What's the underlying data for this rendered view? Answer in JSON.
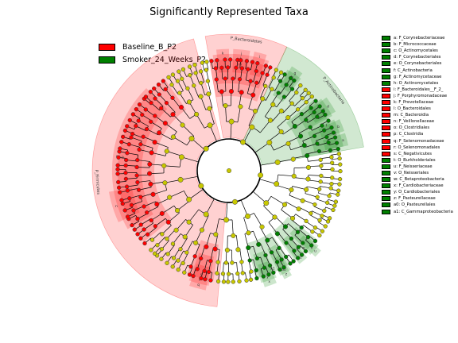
{
  "title": "Significantly Represented Taxa",
  "colors": {
    "baseline": "#ff0000",
    "smoker": "#008000",
    "neutral_node": "#c8c800",
    "baseline_shade": "#ff9e9e",
    "smoker_shade": "#9fd29f"
  },
  "groups": [
    {
      "name": "Baseline_B_P2",
      "color": "#ff0000"
    },
    {
      "name": "Smoker_24_Weeks_P2",
      "color": "#008000"
    }
  ],
  "clades": [
    {
      "label": "a: F_Corynebacteriaceae",
      "group": "smoker"
    },
    {
      "label": "b: F_Micrococcaceae",
      "group": "smoker"
    },
    {
      "label": "c: O_Actinomycetales",
      "group": "smoker"
    },
    {
      "label": "d: F_Corynebacteriales",
      "group": "smoker"
    },
    {
      "label": "e: O_Corynebacteriales",
      "group": "smoker"
    },
    {
      "label": "f: C_Actinobacteria",
      "group": "smoker"
    },
    {
      "label": "g: F_Actinomycetaceae",
      "group": "smoker"
    },
    {
      "label": "h: O_Actinomycetales",
      "group": "smoker"
    },
    {
      "label": "i: F_Bacteroidales__F_2_",
      "group": "baseline"
    },
    {
      "label": "j: F_Porphyromonadaceae",
      "group": "baseline"
    },
    {
      "label": "k: F_Prevotellaceae",
      "group": "baseline"
    },
    {
      "label": "l: O_Bacteroidales",
      "group": "baseline"
    },
    {
      "label": "m: C_Bacteroidia",
      "group": "baseline"
    },
    {
      "label": "n: F_Veillonellaceae",
      "group": "baseline"
    },
    {
      "label": "o: O_Clostridiales",
      "group": "baseline"
    },
    {
      "label": "p: C_Clostridia",
      "group": "baseline"
    },
    {
      "label": "q: F_Selenomonadaceae",
      "group": "baseline"
    },
    {
      "label": "r: O_Selenomonadales",
      "group": "baseline"
    },
    {
      "label": "s: C_Negativicutes",
      "group": "baseline"
    },
    {
      "label": "t: O_Burkholderiales",
      "group": "smoker"
    },
    {
      "label": "u: F_Neisseriaceae",
      "group": "smoker"
    },
    {
      "label": "v: O_Neisseriales",
      "group": "smoker"
    },
    {
      "label": "w: C_Betaproteobacteria",
      "group": "smoker"
    },
    {
      "label": "x: F_Cardiobacteriaceae",
      "group": "smoker"
    },
    {
      "label": "y: O_Cardiobacteriales",
      "group": "smoker"
    },
    {
      "label": "z: F_Pasteurellaceae",
      "group": "smoker"
    },
    {
      "label": "a0: O_Pasteurellales",
      "group": "smoker"
    },
    {
      "label": "a1: C_Gammaproteobacteria",
      "group": "smoker"
    }
  ],
  "phyla": [
    {
      "label": "P_Bacteroidetes",
      "group": "baseline",
      "start": -100,
      "end": -65
    },
    {
      "label": "P_Actinobacteria",
      "group": "smoker",
      "start": -65,
      "end": -10
    },
    {
      "label": "P_Firmicutes",
      "group": "baseline",
      "start": 95,
      "end": 255
    }
  ],
  "sectors": [
    {
      "label": "m",
      "group": "baseline",
      "ring": 4,
      "start": -100,
      "end": -68
    },
    {
      "label": "l",
      "group": "baseline",
      "ring": 5,
      "start": -98,
      "end": -70
    },
    {
      "label": "k",
      "group": "baseline",
      "ring": 6,
      "start": -96,
      "end": -90
    },
    {
      "label": "j",
      "group": "baseline",
      "ring": 6,
      "start": -88,
      "end": -80
    },
    {
      "label": "i",
      "group": "baseline",
      "ring": 6,
      "start": -78,
      "end": -72
    },
    {
      "label": "f",
      "group": "smoker",
      "ring": 4,
      "start": -40,
      "end": -10
    },
    {
      "label": "e",
      "group": "smoker",
      "ring": 5,
      "start": -38,
      "end": -28
    },
    {
      "label": "c",
      "group": "smoker",
      "ring": 5,
      "start": -26,
      "end": -12
    },
    {
      "label": "d",
      "group": "smoker",
      "ring": 6,
      "start": -37,
      "end": -29
    },
    {
      "label": "b",
      "group": "smoker",
      "ring": 6,
      "start": -25,
      "end": -19
    },
    {
      "label": "a",
      "group": "smoker",
      "ring": 6,
      "start": -18,
      "end": -12
    },
    {
      "label": "h",
      "group": "smoker",
      "ring": 5,
      "start": -60,
      "end": -52
    },
    {
      "label": "g",
      "group": "smoker",
      "ring": 6,
      "start": -59,
      "end": -53
    },
    {
      "label": "p",
      "group": "baseline",
      "ring": 4,
      "start": 140,
      "end": 235
    },
    {
      "label": "o",
      "group": "baseline",
      "ring": 5,
      "start": 150,
      "end": 225
    },
    {
      "label": "n",
      "group": "baseline",
      "ring": 6,
      "start": 155,
      "end": 170
    },
    {
      "label": "s",
      "group": "baseline",
      "ring": 4,
      "start": 98,
      "end": 112
    },
    {
      "label": "r",
      "group": "baseline",
      "ring": 5,
      "start": 100,
      "end": 110
    },
    {
      "label": "q",
      "group": "baseline",
      "ring": 6,
      "start": 101,
      "end": 109
    },
    {
      "label": "a1",
      "group": "smoker",
      "ring": 4,
      "start": 56,
      "end": 76
    },
    {
      "label": "a0",
      "group": "smoker",
      "ring": 5,
      "start": 58,
      "end": 64
    },
    {
      "label": "z",
      "group": "smoker",
      "ring": 6,
      "start": 59,
      "end": 63
    },
    {
      "label": "y",
      "group": "smoker",
      "ring": 5,
      "start": 66,
      "end": 74
    },
    {
      "label": "x",
      "group": "smoker",
      "ring": 6,
      "start": 67,
      "end": 73
    },
    {
      "label": "w",
      "group": "smoker",
      "ring": 4,
      "start": 38,
      "end": 54
    },
    {
      "label": "v",
      "group": "smoker",
      "ring": 5,
      "start": 40,
      "end": 46
    },
    {
      "label": "u",
      "group": "smoker",
      "ring": 6,
      "start": 41,
      "end": 45
    },
    {
      "label": "t",
      "group": "smoker",
      "ring": 5,
      "start": 48,
      "end": 53
    }
  ]
}
